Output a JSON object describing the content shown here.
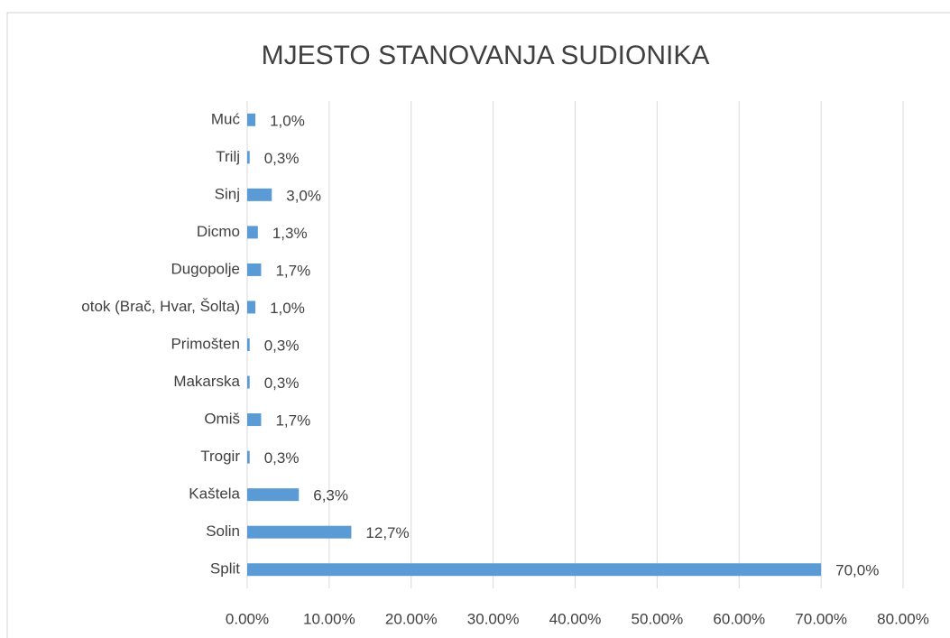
{
  "chart_data": {
    "type": "bar",
    "orientation": "horizontal",
    "title": "MJESTO STANOVANJA SUDIONIKA",
    "categories": [
      "Muć",
      "Trilj",
      "Sinj",
      "Dicmo",
      "Dugopolje",
      "otok (Brač, Hvar, Šolta)",
      "Primošten",
      "Makarska",
      "Omiš",
      "Trogir",
      "Kaštela",
      "Solin",
      "Split"
    ],
    "values": [
      1.0,
      0.3,
      3.0,
      1.3,
      1.7,
      1.0,
      0.3,
      0.3,
      1.7,
      0.3,
      6.3,
      12.7,
      70.0
    ],
    "value_labels": [
      "1,0%",
      "0,3%",
      "3,0%",
      "1,3%",
      "1,7%",
      "1,0%",
      "0,3%",
      "0,3%",
      "1,7%",
      "0,3%",
      "6,3%",
      "12,7%",
      "70,0%"
    ],
    "color": "#5b9bd5",
    "xlim": [
      0,
      80
    ],
    "xticks": [
      {
        "value": 0,
        "label": "0.00%"
      },
      {
        "value": 10,
        "label": "10.00%"
      },
      {
        "value": 20,
        "label": "20.00%"
      },
      {
        "value": 30,
        "label": "30.00%"
      },
      {
        "value": 40,
        "label": "40.00%"
      },
      {
        "value": 50,
        "label": "50.00%"
      },
      {
        "value": 60,
        "label": "60.00%"
      },
      {
        "value": 70,
        "label": "70.00%"
      },
      {
        "value": 80,
        "label": "80.00%"
      }
    ],
    "grid": true
  }
}
